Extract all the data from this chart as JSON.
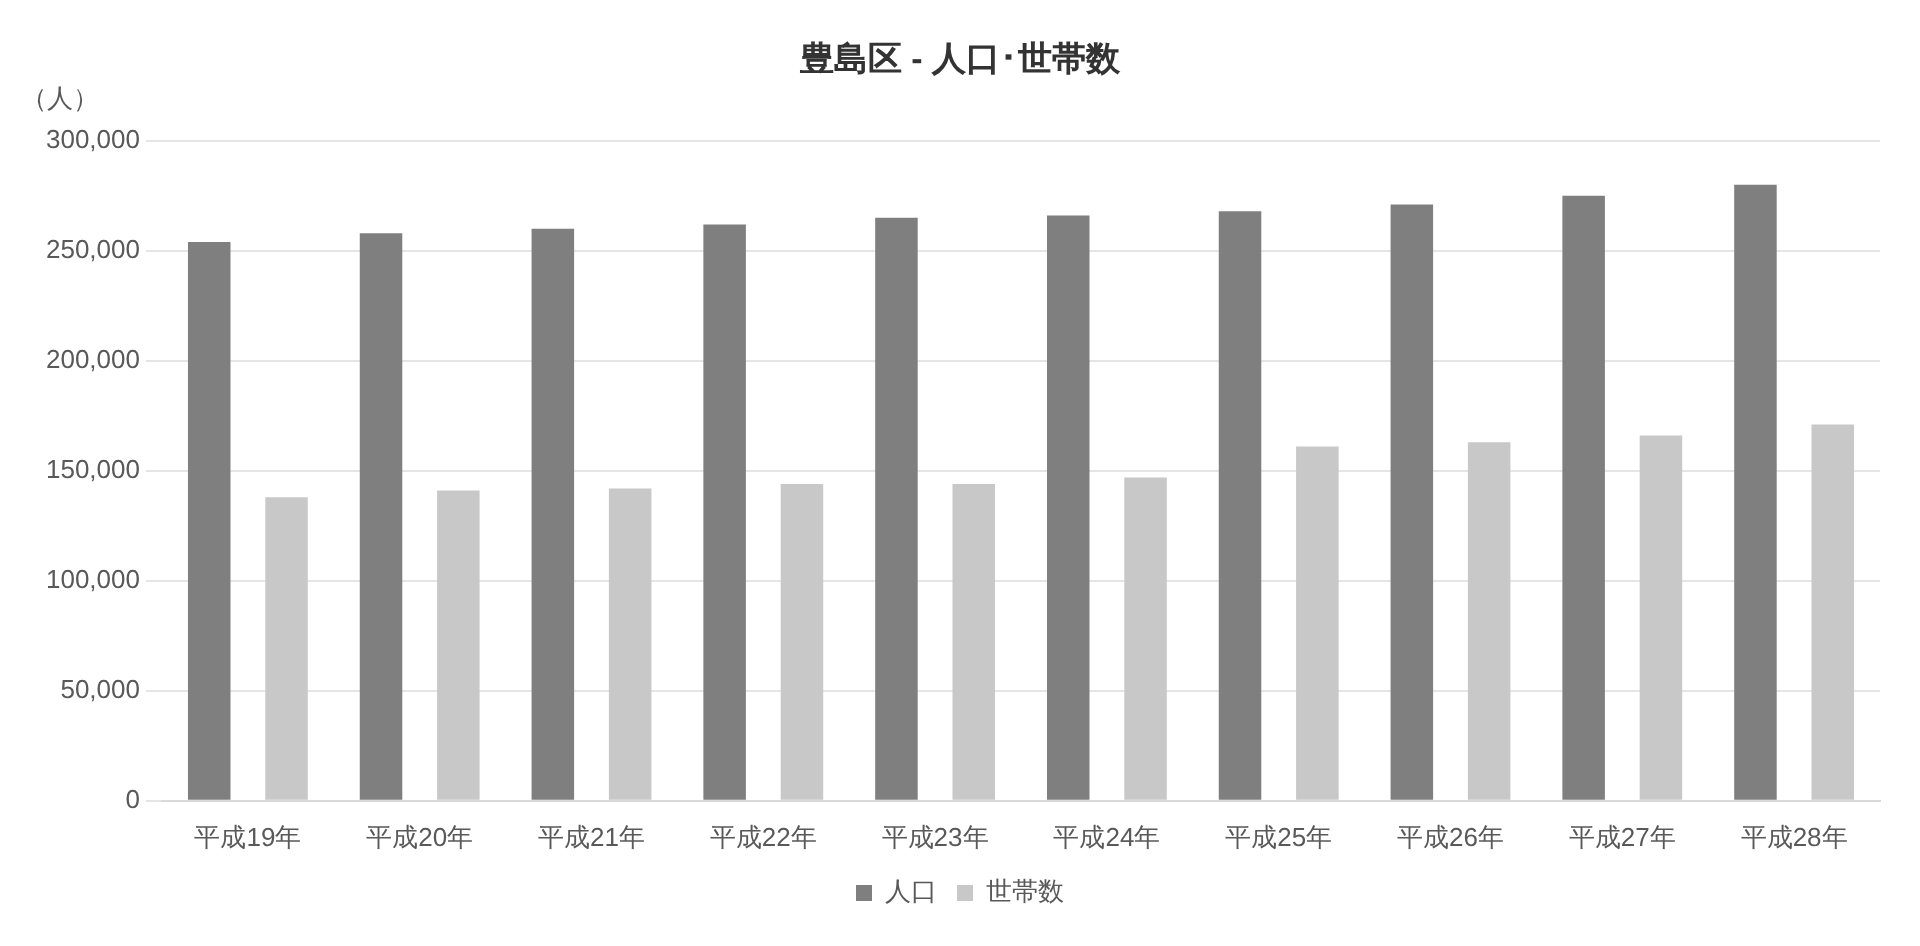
{
  "chart_data": {
    "type": "bar",
    "title": "豊島区 - 人口･世帯数",
    "ylabel": "（人）",
    "categories": [
      "平成19年",
      "平成20年",
      "平成21年",
      "平成22年",
      "平成23年",
      "平成24年",
      "平成25年",
      "平成26年",
      "平成27年",
      "平成28年"
    ],
    "series": [
      {
        "name": "人口",
        "color": "#7f7f7f",
        "values": [
          254000,
          258000,
          260000,
          262000,
          265000,
          266000,
          268000,
          271000,
          275000,
          280000
        ]
      },
      {
        "name": "世帯数",
        "color": "#c8c8c8",
        "values": [
          138000,
          141000,
          142000,
          144000,
          144000,
          147000,
          161000,
          163000,
          166000,
          171000
        ]
      }
    ],
    "ylim": [
      0,
      300000
    ],
    "yticks": [
      0,
      {
        "value": 50000,
        "label": "50,000"
      },
      {
        "value": 100000,
        "label": "100,000"
      },
      {
        "value": 150000,
        "label": "150,000"
      },
      {
        "value": 200000,
        "label": "200,000"
      },
      {
        "value": 250000,
        "label": "250,000"
      },
      {
        "value": 300000,
        "label": "300,000"
      }
    ],
    "grid": "y",
    "legend": "bottom"
  }
}
